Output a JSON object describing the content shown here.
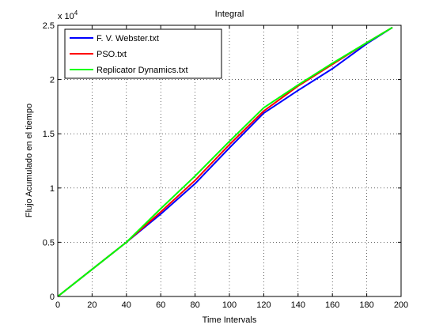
{
  "chart_data": {
    "type": "line",
    "title": "Integral",
    "xlabel": "Time Intervals",
    "ylabel": "Flujo Acumulado en el tiempo",
    "xlim": [
      0,
      200
    ],
    "ylim": [
      0,
      25000
    ],
    "xticks": [
      0,
      20,
      40,
      60,
      80,
      100,
      120,
      140,
      160,
      180,
      200
    ],
    "xtick_labels": [
      "0",
      "20",
      "40",
      "60",
      "80",
      "100",
      "120",
      "140",
      "160",
      "180",
      "200"
    ],
    "yticks": [
      0,
      5000,
      10000,
      15000,
      20000,
      25000
    ],
    "ytick_labels": [
      "0",
      "0.5",
      "1",
      "1.5",
      "2",
      "2.5"
    ],
    "y_multiplier_base": "x 10",
    "y_multiplier_exp": "4",
    "grid": true,
    "legend_position": "top-left",
    "series": [
      {
        "name": "F. V. Webster.txt",
        "color": "#0000ff",
        "x": [
          0,
          20,
          40,
          60,
          80,
          100,
          120,
          140,
          160,
          180,
          195
        ],
        "y": [
          0,
          2500,
          5000,
          7600,
          10400,
          13700,
          16900,
          19000,
          21000,
          23300,
          24800
        ]
      },
      {
        "name": "PSO.txt",
        "color": "#ff0000",
        "x": [
          0,
          20,
          40,
          60,
          80,
          100,
          120,
          140,
          160,
          180,
          195
        ],
        "y": [
          0,
          2500,
          5000,
          7800,
          10700,
          14000,
          17100,
          19400,
          21400,
          23400,
          24800
        ]
      },
      {
        "name": "Replicator Dynamics.txt",
        "color": "#00ff00",
        "x": [
          0,
          20,
          40,
          60,
          80,
          100,
          120,
          140,
          160,
          180,
          195
        ],
        "y": [
          0,
          2500,
          5000,
          8100,
          11100,
          14300,
          17400,
          19500,
          21500,
          23400,
          24800
        ]
      }
    ]
  }
}
